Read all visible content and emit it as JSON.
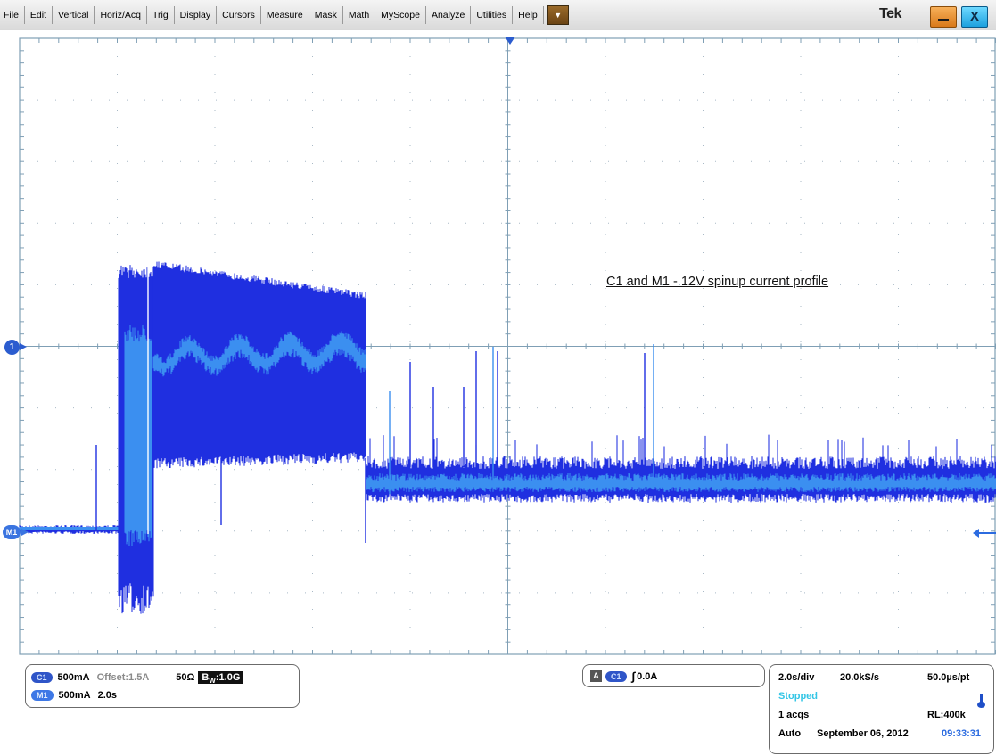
{
  "menu": {
    "items": [
      "File",
      "Edit",
      "Vertical",
      "Horiz/Acq",
      "Trig",
      "Display",
      "Cursors",
      "Measure",
      "Mask",
      "Math",
      "MyScope",
      "Analyze",
      "Utilities",
      "Help"
    ],
    "dropdown_icon": "dropdown-arrow-icon"
  },
  "brand": {
    "logo_text": "Tek"
  },
  "window_buttons": {
    "minimize_icon": "minimize-icon",
    "close_label": "X"
  },
  "display": {
    "annotation": "C1 and M1 - 12V spinup current profile",
    "channel1_marker": "1",
    "math1_marker": "M1"
  },
  "channel_panel": {
    "c1": {
      "badge": "C1",
      "scale": "500mA",
      "offset": "Offset:1.5A",
      "impedance": "50Ω",
      "bw_prefix": "B",
      "bw_sub": "W",
      "bw_value": ":1.0G"
    },
    "m1": {
      "badge": "M1",
      "scale": "500mA",
      "time": "2.0s"
    }
  },
  "trigger_panel": {
    "mode_box": "A",
    "source_badge": "C1",
    "slope_symbol": "∫",
    "level": "0.0A"
  },
  "timebase_panel": {
    "horizontal_scale": "2.0s/div",
    "sample_rate": "20.0kS/s",
    "time_per_point": "50.0µs/pt",
    "state": "Stopped",
    "acquisitions": "1 acqs",
    "record_length": "RL:400k",
    "trigger_mode": "Auto",
    "date": "September 06, 2012",
    "time": "09:33:31"
  },
  "colors": {
    "trace_dark": "#1f2fe0",
    "trace_light": "#3b8ff0",
    "grid": "#7f9fb5",
    "marker": "#2b5ccf"
  }
}
